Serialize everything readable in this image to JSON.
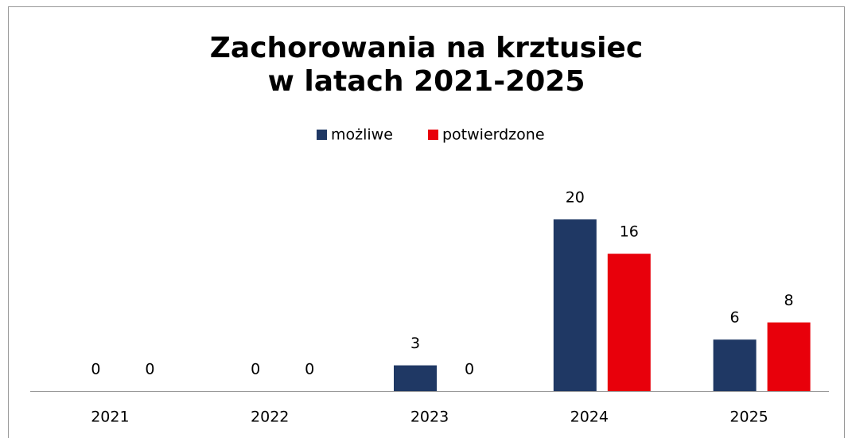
{
  "chart_data": {
    "type": "bar",
    "title": [
      "Zachorowania na krztusiec",
      "w latach 2021-2025"
    ],
    "categories": [
      "2021",
      "2022",
      "2023",
      "2024",
      "2025"
    ],
    "series": [
      {
        "name": "możliwe",
        "color": "#1f3864",
        "values": [
          0,
          0,
          3,
          20,
          6
        ]
      },
      {
        "name": "potwierdzone",
        "color": "#e8000b",
        "values": [
          0,
          0,
          0,
          16,
          8
        ]
      }
    ],
    "legend": "top"
  }
}
